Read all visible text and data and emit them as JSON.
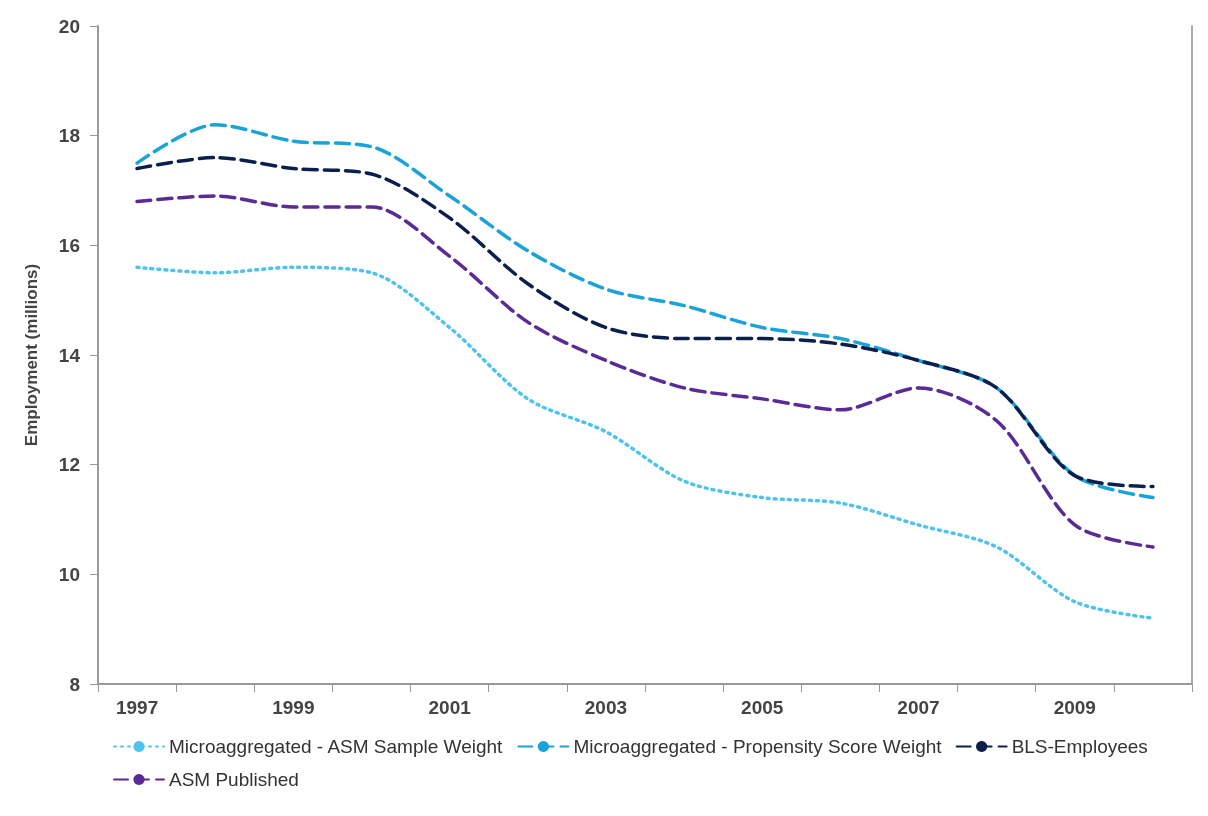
{
  "chart_data": {
    "type": "line",
    "ylabel": "Employment (millions)",
    "categories": [
      "1997",
      null,
      "1999",
      null,
      "2001",
      null,
      "2003",
      null,
      "2005",
      null,
      "2007",
      null,
      "2009",
      null
    ],
    "series": [
      {
        "name": "Microaggregated - ASM Sample Weight",
        "color": "#4fc3ee",
        "line_style": "dotted",
        "values": [
          15.6,
          15.5,
          15.6,
          15.5,
          14.5,
          13.2,
          12.6,
          11.7,
          11.4,
          11.3,
          10.9,
          10.5,
          9.5,
          9.2
        ]
      },
      {
        "name": "Microaggregated - Propensity Score Weight",
        "color": "#1aa3d8",
        "line_style": "dashed",
        "values": [
          17.5,
          18.2,
          17.9,
          17.8,
          16.9,
          15.9,
          15.2,
          14.9,
          14.5,
          14.3,
          13.9,
          13.4,
          11.8,
          11.4
        ]
      },
      {
        "name": "BLS-Employees",
        "color": "#0b1f4f",
        "line_style": "dashed",
        "values": [
          17.4,
          17.6,
          17.4,
          17.3,
          16.5,
          15.3,
          14.5,
          14.3,
          14.3,
          14.2,
          13.9,
          13.4,
          11.8,
          11.6
        ]
      },
      {
        "name": "ASM Published",
        "color": "#5a2a96",
        "line_style": "dashed",
        "values": [
          16.8,
          16.9,
          16.7,
          16.7,
          15.8,
          14.6,
          13.9,
          13.4,
          13.2,
          13.0,
          13.4,
          12.8,
          10.9,
          10.5
        ]
      }
    ],
    "ylim": [
      8,
      20
    ],
    "yticks": [
      8,
      10,
      12,
      14,
      16,
      18,
      20
    ],
    "grid": false,
    "legend": "bottom",
    "marker": "none"
  }
}
